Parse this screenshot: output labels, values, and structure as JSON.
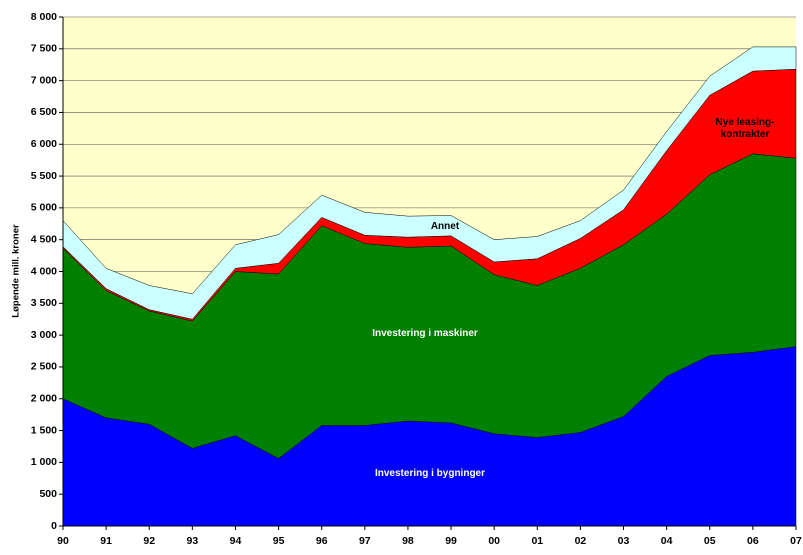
{
  "chart_data": {
    "type": "stacked-area",
    "y_label": "Løpende mill. kroner",
    "categories": [
      "90",
      "91",
      "92",
      "93",
      "94",
      "95",
      "96",
      "97",
      "98",
      "99",
      "00",
      "01",
      "02",
      "03",
      "04",
      "05",
      "06",
      "07"
    ],
    "series": [
      {
        "name": "Investering i bygninger",
        "color": "#0000ff",
        "values": [
          2000,
          1700,
          1600,
          1220,
          1420,
          1060,
          1580,
          1580,
          1650,
          1620,
          1450,
          1390,
          1470,
          1720,
          2350,
          2680,
          2730,
          2820
        ]
      },
      {
        "name": "Investering i maskiner",
        "color": "#008000",
        "values": [
          2370,
          2000,
          1780,
          2000,
          2580,
          2900,
          3140,
          2860,
          2730,
          2780,
          2500,
          2390,
          2580,
          2700,
          2550,
          2840,
          3120,
          2960
        ]
      },
      {
        "name": "Nye leasing-kontrakter",
        "color": "#ff0000",
        "values": [
          20,
          30,
          20,
          30,
          50,
          170,
          130,
          130,
          160,
          160,
          200,
          420,
          470,
          550,
          1000,
          1250,
          1300,
          1400
        ]
      },
      {
        "name": "Annet",
        "color": "#ccffff",
        "values": [
          410,
          320,
          380,
          400,
          370,
          450,
          350,
          360,
          330,
          320,
          350,
          350,
          280,
          310,
          300,
          300,
          380,
          350
        ]
      }
    ],
    "ylim": [
      0,
      8000
    ],
    "yticks": [
      0,
      500,
      {
        "value": 1000,
        "label": "1 000"
      },
      {
        "value": 1500,
        "label": "1 500"
      },
      {
        "value": 2000,
        "label": "2 000"
      },
      {
        "value": 2500,
        "label": "2 500"
      },
      {
        "value": 3000,
        "label": "3 000"
      },
      {
        "value": 3500,
        "label": "3 500"
      },
      {
        "value": 4000,
        "label": "4 000"
      },
      {
        "value": 4500,
        "label": "4 500"
      },
      {
        "value": 5000,
        "label": "5 000"
      },
      {
        "value": 5500,
        "label": "5 500"
      },
      {
        "value": 6000,
        "label": "6 000"
      },
      {
        "value": 6500,
        "label": "6 500"
      },
      {
        "value": 7000,
        "label": "7 000"
      },
      {
        "value": 7500,
        "label": "7 500"
      },
      {
        "value": 8000,
        "label": "8 000"
      }
    ],
    "grid": true,
    "background": "#ffffcc"
  }
}
